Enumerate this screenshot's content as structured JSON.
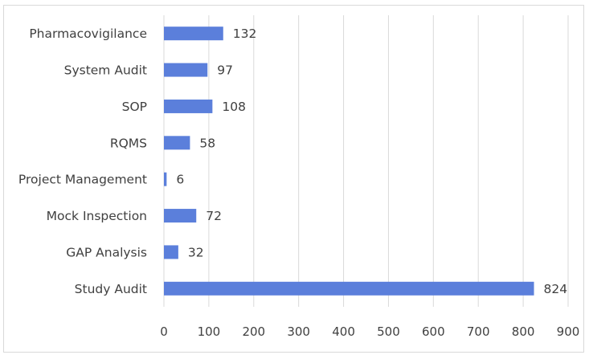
{
  "chart_data": {
    "type": "bar",
    "orientation": "horizontal",
    "title": "",
    "xlabel": "",
    "ylabel": "",
    "categories": [
      "Pharmacovigilance",
      "System Audit",
      "SOP",
      "RQMS",
      "Project Management",
      "Mock Inspection",
      "GAP Analysis",
      "Study Audit"
    ],
    "values": [
      132,
      97,
      108,
      58,
      6,
      72,
      32,
      824
    ],
    "xlim": [
      0,
      900
    ],
    "xticks": [
      0,
      100,
      200,
      300,
      400,
      500,
      600,
      700,
      800,
      900
    ],
    "grid": "vertical",
    "legend": "none",
    "data_labels": true,
    "bar_color": "#5b7fdb",
    "grid_color": "#d9d9d9"
  }
}
